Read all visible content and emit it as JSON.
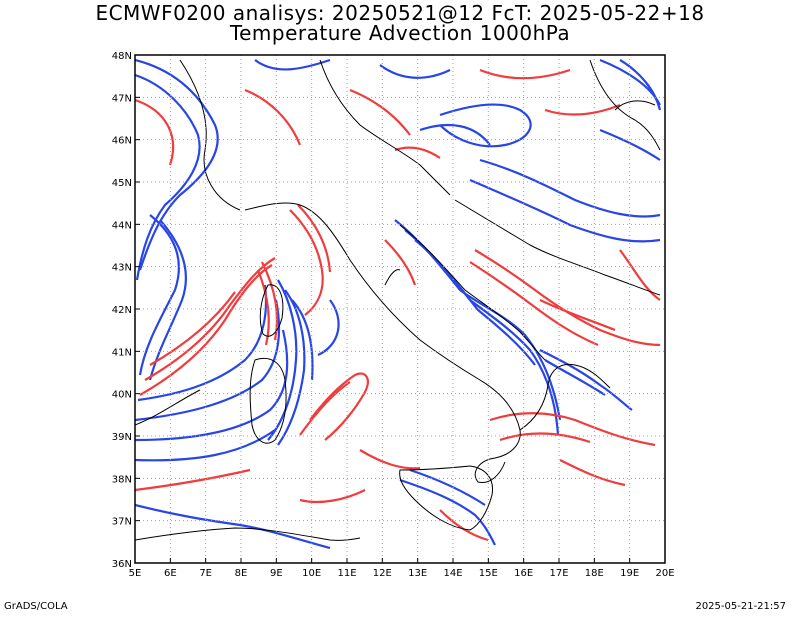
{
  "title": {
    "line1": "ECMWF0200 analisys: 20250521@12 FcT: 2025-05-22+18",
    "line2": "Temperature Advection 1000hPa"
  },
  "map": {
    "lon_range": [
      5,
      20
    ],
    "lat_range": [
      36,
      48
    ],
    "grid": true,
    "lon_labels": [
      "5E",
      "6E",
      "7E",
      "8E",
      "9E",
      "10E",
      "11E",
      "12E",
      "13E",
      "14E",
      "15E",
      "16E",
      "17E",
      "18E",
      "19E",
      "20E"
    ],
    "lat_labels": [
      "36N",
      "37N",
      "38N",
      "39N",
      "40N",
      "41N",
      "42N",
      "43N",
      "44N",
      "45N",
      "46N",
      "47N",
      "48N"
    ],
    "colors": {
      "warm_advection": "#f03c3c",
      "cold_advection": "#2846e6",
      "coastline": "#000000",
      "grid": "#a0a0a0"
    }
  },
  "footer": {
    "left": "GrADS/COLA",
    "right": "2025-05-21-21:57"
  }
}
